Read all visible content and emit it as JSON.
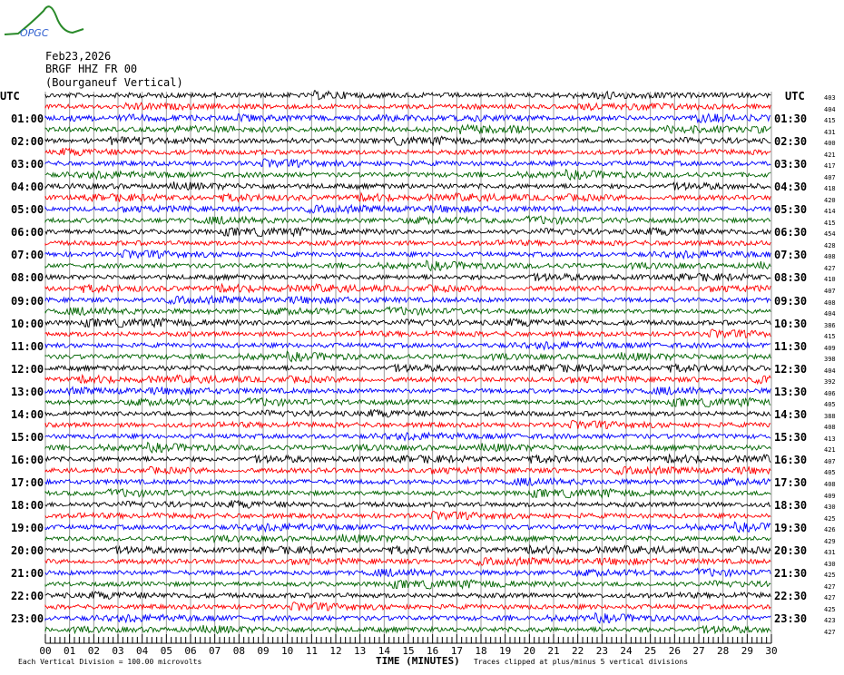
{
  "header": {
    "date": "Feb23,2026",
    "station": "BRGF HHZ FR 00",
    "location": "(Bourganeuf Vertical)",
    "logo_text": "OPGC"
  },
  "left_utc_label": "UTC",
  "right_utc_label": "UTC",
  "left_hours": [
    "01:00",
    "02:00",
    "03:00",
    "04:00",
    "05:00",
    "06:00",
    "07:00",
    "08:00",
    "09:00",
    "10:00",
    "11:00",
    "12:00",
    "13:00",
    "14:00",
    "15:00",
    "16:00",
    "17:00",
    "18:00",
    "19:00",
    "20:00",
    "21:00",
    "22:00",
    "23:00"
  ],
  "right_hours": [
    "01:30",
    "02:30",
    "03:30",
    "04:30",
    "05:30",
    "06:30",
    "07:30",
    "08:30",
    "09:30",
    "10:30",
    "11:30",
    "12:30",
    "13:30",
    "14:30",
    "15:30",
    "16:30",
    "17:30",
    "18:30",
    "19:30",
    "20:30",
    "21:30",
    "22:30",
    "23:30"
  ],
  "trace_values": [
    "403",
    "404",
    "415",
    "431",
    "400",
    "421",
    "417",
    "407",
    "418",
    "420",
    "414",
    "415",
    "454",
    "428",
    "408",
    "427",
    "410",
    "407",
    "408",
    "404",
    "386",
    "415",
    "409",
    "398",
    "404",
    "392",
    "406",
    "405",
    "388",
    "408",
    "413",
    "421",
    "407",
    "405",
    "408",
    "409",
    "430",
    "425",
    "426",
    "429",
    "431",
    "430",
    "425",
    "427",
    "427",
    "425",
    "423",
    "427"
  ],
  "trace_colors": [
    "#000000",
    "#ff0000",
    "#0000ff",
    "#006400"
  ],
  "x_ticks": [
    "00",
    "01",
    "02",
    "03",
    "04",
    "05",
    "06",
    "07",
    "08",
    "09",
    "10",
    "11",
    "12",
    "13",
    "14",
    "15",
    "16",
    "17",
    "18",
    "19",
    "20",
    "21",
    "22",
    "23",
    "24",
    "25",
    "26",
    "27",
    "28",
    "29",
    "30"
  ],
  "x_axis_label": "TIME (MINUTES)",
  "scale_note": "Each Vertical Division =  100.00 microvolts",
  "clip_note": "Traces clipped at plus/minus 5 vertical divisions"
}
